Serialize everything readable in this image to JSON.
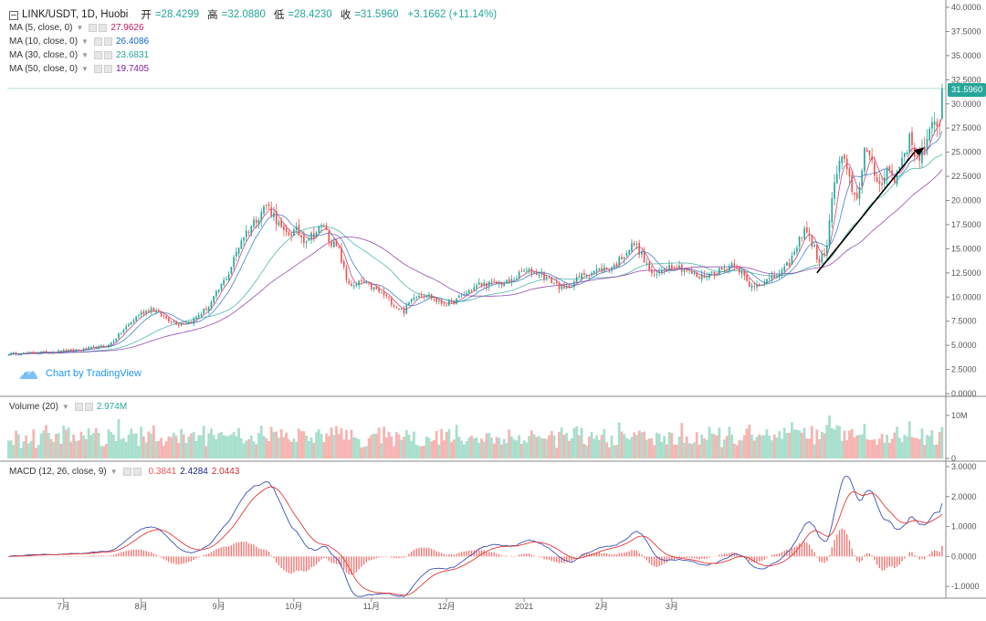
{
  "header": {
    "icon": "collapse-square-icon",
    "symbol": "LINK/USDT, 1D, Huobi",
    "open_label": "开",
    "open": "=28.4299",
    "high_label": "高",
    "high": "=32.0880",
    "low_label": "低",
    "low": "=28.4230",
    "close_label": "收",
    "close": "=31.5960",
    "change": "+3.1662 (+11.14%)"
  },
  "ma_legend": [
    {
      "label": "MA (5, close, 0)",
      "value": "27.9626",
      "color": "#c2185b"
    },
    {
      "label": "MA (10, close, 0)",
      "value": "26.4086",
      "color": "#1565c0"
    },
    {
      "label": "MA (30, close, 0)",
      "value": "23.6831",
      "color": "#26a69a"
    },
    {
      "label": "MA (50, close, 0)",
      "value": "19.7405",
      "color": "#7b1fa2"
    }
  ],
  "volume_legend": {
    "label": "Volume (20)",
    "value": "2.974M"
  },
  "macd_legend": {
    "label": "MACD (12, 26, close, 9)",
    "hist": "0.3841",
    "macd": "2.4284",
    "signal": "2.0443"
  },
  "last_price_badge": "31.5960",
  "brand": {
    "text": "Chart by TradingView",
    "icon": "tradingview-cloud-icon"
  },
  "colors": {
    "up": "#26a69a",
    "down": "#ef5350",
    "vol_up": "#a8dfcd",
    "vol_down": "#f6b4b2",
    "grid": "#d9d9d9"
  },
  "chart_data": {
    "type": "candlestick",
    "title": "LINK/USDT, 1D, Huobi",
    "price_axis": {
      "min": 0,
      "max": 40,
      "ticks": [
        "0.0000",
        "2.5000",
        "5.0000",
        "7.5000",
        "10.0000",
        "12.5000",
        "15.0000",
        "17.5000",
        "20.0000",
        "22.5000",
        "25.0000",
        "27.5000",
        "30.0000",
        "32.5000",
        "35.0000",
        "37.5000",
        "40.0000"
      ]
    },
    "volume_axis": {
      "ticks": [
        "0",
        "10M"
      ]
    },
    "macd_axis": {
      "min": -1.3,
      "max": 3.0,
      "ticks": [
        "-1.0000",
        "0.0000",
        "1.0000",
        "2.0000",
        "3.0000"
      ]
    },
    "x_ticks": [
      "7月",
      "8月",
      "9月",
      "10月",
      "11月",
      "12月",
      "2021",
      "2月",
      "3月"
    ],
    "price_path": [
      [
        0,
        4.1
      ],
      [
        15,
        4.3
      ],
      [
        28,
        4.5
      ],
      [
        40,
        5.0
      ],
      [
        52,
        8.2
      ],
      [
        57,
        8.8
      ],
      [
        63,
        7.8
      ],
      [
        68,
        7.2
      ],
      [
        73,
        7.5
      ],
      [
        80,
        9.0
      ],
      [
        88,
        12.5
      ],
      [
        93,
        16.0
      ],
      [
        100,
        18.5
      ],
      [
        103,
        19.6
      ],
      [
        106,
        18.5
      ],
      [
        110,
        16.5
      ],
      [
        115,
        16.8
      ],
      [
        118,
        16.0
      ],
      [
        122,
        16.5
      ],
      [
        126,
        17.5
      ],
      [
        128,
        16.0
      ],
      [
        132,
        14.8
      ],
      [
        135,
        11.8
      ],
      [
        138,
        11.0
      ],
      [
        141,
        11.6
      ],
      [
        145,
        11.0
      ],
      [
        150,
        10.2
      ],
      [
        155,
        9.0
      ],
      [
        158,
        8.5
      ],
      [
        162,
        10.2
      ],
      [
        167,
        10.3
      ],
      [
        172,
        9.4
      ],
      [
        177,
        9.3
      ],
      [
        182,
        10.3
      ],
      [
        188,
        11.3
      ],
      [
        195,
        11.4
      ],
      [
        200,
        11.5
      ],
      [
        206,
        12.7
      ],
      [
        212,
        12.5
      ],
      [
        218,
        11.5
      ],
      [
        222,
        10.7
      ],
      [
        226,
        11.6
      ],
      [
        230,
        12.4
      ],
      [
        236,
        12.8
      ],
      [
        242,
        13.2
      ],
      [
        246,
        14.5
      ],
      [
        250,
        15.5
      ],
      [
        252,
        14.8
      ],
      [
        255,
        13.3
      ],
      [
        258,
        12.0
      ],
      [
        262,
        13.1
      ],
      [
        266,
        13.3
      ],
      [
        270,
        12.9
      ],
      [
        276,
        12.0
      ],
      [
        281,
        12.5
      ],
      [
        286,
        12.9
      ],
      [
        290,
        13.6
      ],
      [
        293,
        12.5
      ],
      [
        296,
        11.0
      ],
      [
        300,
        11.5
      ],
      [
        305,
        11.9
      ],
      [
        310,
        12.8
      ],
      [
        314,
        14.5
      ],
      [
        318,
        17.3
      ],
      [
        322,
        15.0
      ],
      [
        324,
        13.4
      ],
      [
        327,
        15.5
      ],
      [
        330,
        22.0
      ],
      [
        333,
        24.5
      ],
      [
        336,
        22.0
      ],
      [
        339,
        20.0
      ],
      [
        342,
        25.4
      ],
      [
        345,
        23.5
      ],
      [
        348,
        21.5
      ],
      [
        351,
        23.5
      ],
      [
        354,
        22.0
      ],
      [
        357,
        24.5
      ],
      [
        360,
        26.2
      ],
      [
        363,
        24.5
      ],
      [
        366,
        25.3
      ],
      [
        369,
        27.5
      ],
      [
        372,
        28.4
      ],
      [
        373,
        31.6
      ]
    ],
    "last_close": 31.596,
    "indicators": [
      "MA 5",
      "MA 10",
      "MA 30",
      "MA 50",
      "Volume (20)",
      "MACD (12, 26, close, 9)"
    ]
  }
}
